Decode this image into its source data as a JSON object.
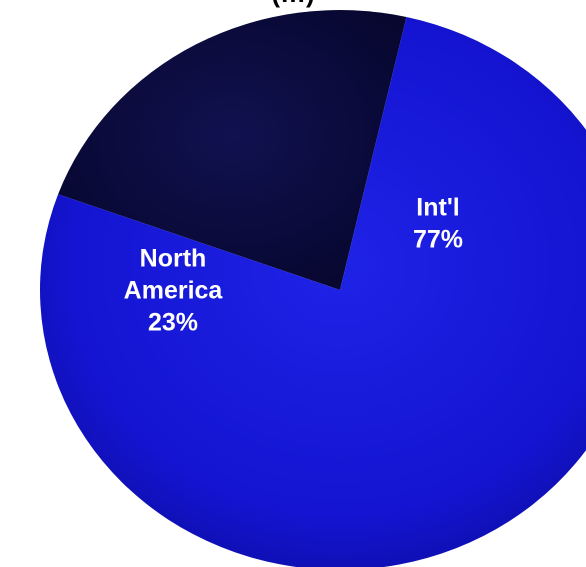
{
  "chart_data": {
    "type": "pie",
    "title_partial": "(…)",
    "slices": [
      {
        "label_lines": [
          "Int'l"
        ],
        "value_label": "77%",
        "value": 77,
        "color": "#1010C8"
      },
      {
        "label_lines": [
          "North",
          "America"
        ],
        "value_label": "23%",
        "value": 23,
        "color": "#0A0A3C"
      }
    ]
  }
}
